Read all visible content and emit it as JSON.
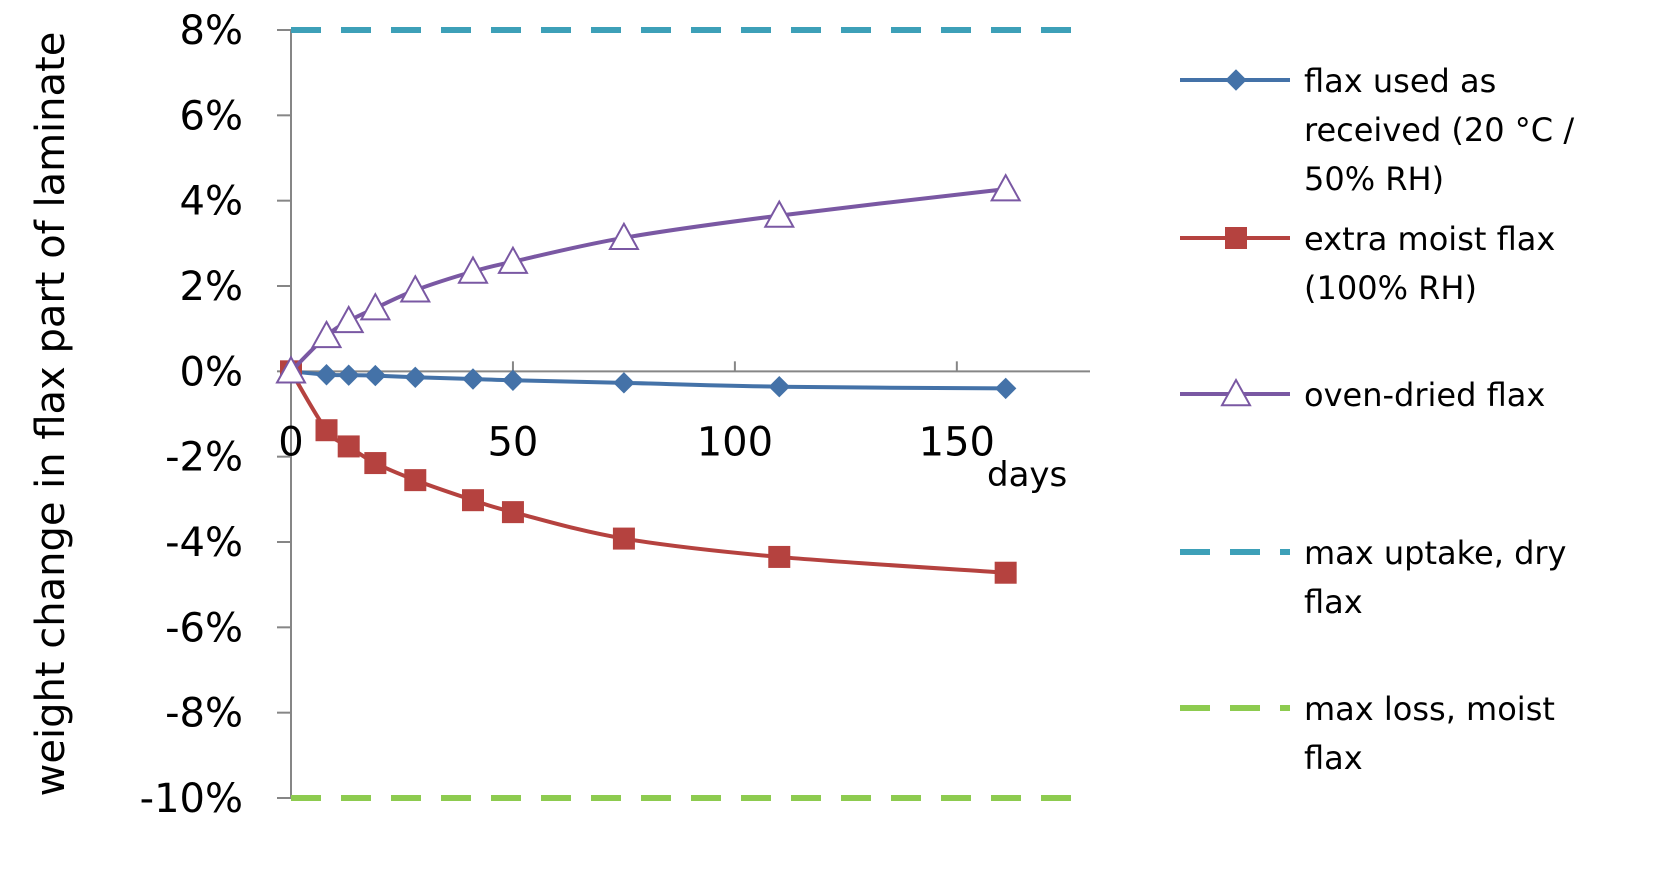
{
  "chart_data": {
    "type": "line",
    "ylabel": "weight change in flax part of laminate",
    "xunit_label": "days",
    "xlim": [
      0,
      180
    ],
    "ylim": [
      -0.1,
      0.08
    ],
    "x_ticks": [
      0,
      50,
      100,
      150
    ],
    "x_tick_labels": [
      "0",
      "50",
      "100",
      "150"
    ],
    "y_ticks": [
      0.08,
      0.06,
      0.04,
      0.02,
      0.0,
      -0.02,
      -0.04,
      -0.06,
      -0.08,
      -0.1
    ],
    "y_tick_labels": [
      "8%",
      "6%",
      "4%",
      "2%",
      "0%",
      "-2%",
      "-4%",
      "-6%",
      "-8%",
      "-10%"
    ],
    "legend_position": "right",
    "series": [
      {
        "name": "flax used as received (20 °C / 50% RH)",
        "legend_lines": [
          "flax used as",
          "received (20 °C /",
          "50% RH)"
        ],
        "color": "#4472A8",
        "marker": "diamond",
        "x": [
          0,
          8,
          13,
          19,
          28,
          41,
          50,
          75,
          110,
          161
        ],
        "y": [
          0.0,
          -0.0008,
          -0.0009,
          -0.001,
          -0.0014,
          -0.0018,
          -0.0021,
          -0.0027,
          -0.0036,
          -0.004
        ]
      },
      {
        "name": "extra moist flax (100% RH)",
        "legend_lines": [
          "extra moist flax",
          "(100% RH)"
        ],
        "color": "#B5423F",
        "marker": "square",
        "x": [
          0,
          8,
          13,
          19,
          28,
          41,
          50,
          75,
          110,
          161
        ],
        "y": [
          0.0,
          -0.0138,
          -0.0176,
          -0.0215,
          -0.0255,
          -0.0302,
          -0.033,
          -0.0392,
          -0.0435,
          -0.0472
        ]
      },
      {
        "name": "oven-dried flax",
        "legend_lines": [
          "oven-dried flax"
        ],
        "color": "#7A58A3",
        "marker": "triangle-open",
        "x": [
          0,
          8,
          13,
          19,
          28,
          41,
          50,
          75,
          110,
          161
        ],
        "y": [
          0.0,
          0.0083,
          0.0118,
          0.0148,
          0.019,
          0.0234,
          0.0257,
          0.0313,
          0.0365,
          0.0427
        ]
      },
      {
        "name": "max uptake, dry flax",
        "legend_lines": [
          "max uptake, dry",
          "flax"
        ],
        "color": "#3DA0B8",
        "marker": "none",
        "dashed": true,
        "x": [
          0,
          180
        ],
        "y": [
          0.08,
          0.08
        ]
      },
      {
        "name": "max loss, moist flax",
        "legend_lines": [
          "max loss, moist",
          "flax"
        ],
        "color": "#8DCB4F",
        "marker": "none",
        "dashed": true,
        "x": [
          0,
          180
        ],
        "y": [
          -0.1,
          -0.1
        ]
      }
    ]
  }
}
